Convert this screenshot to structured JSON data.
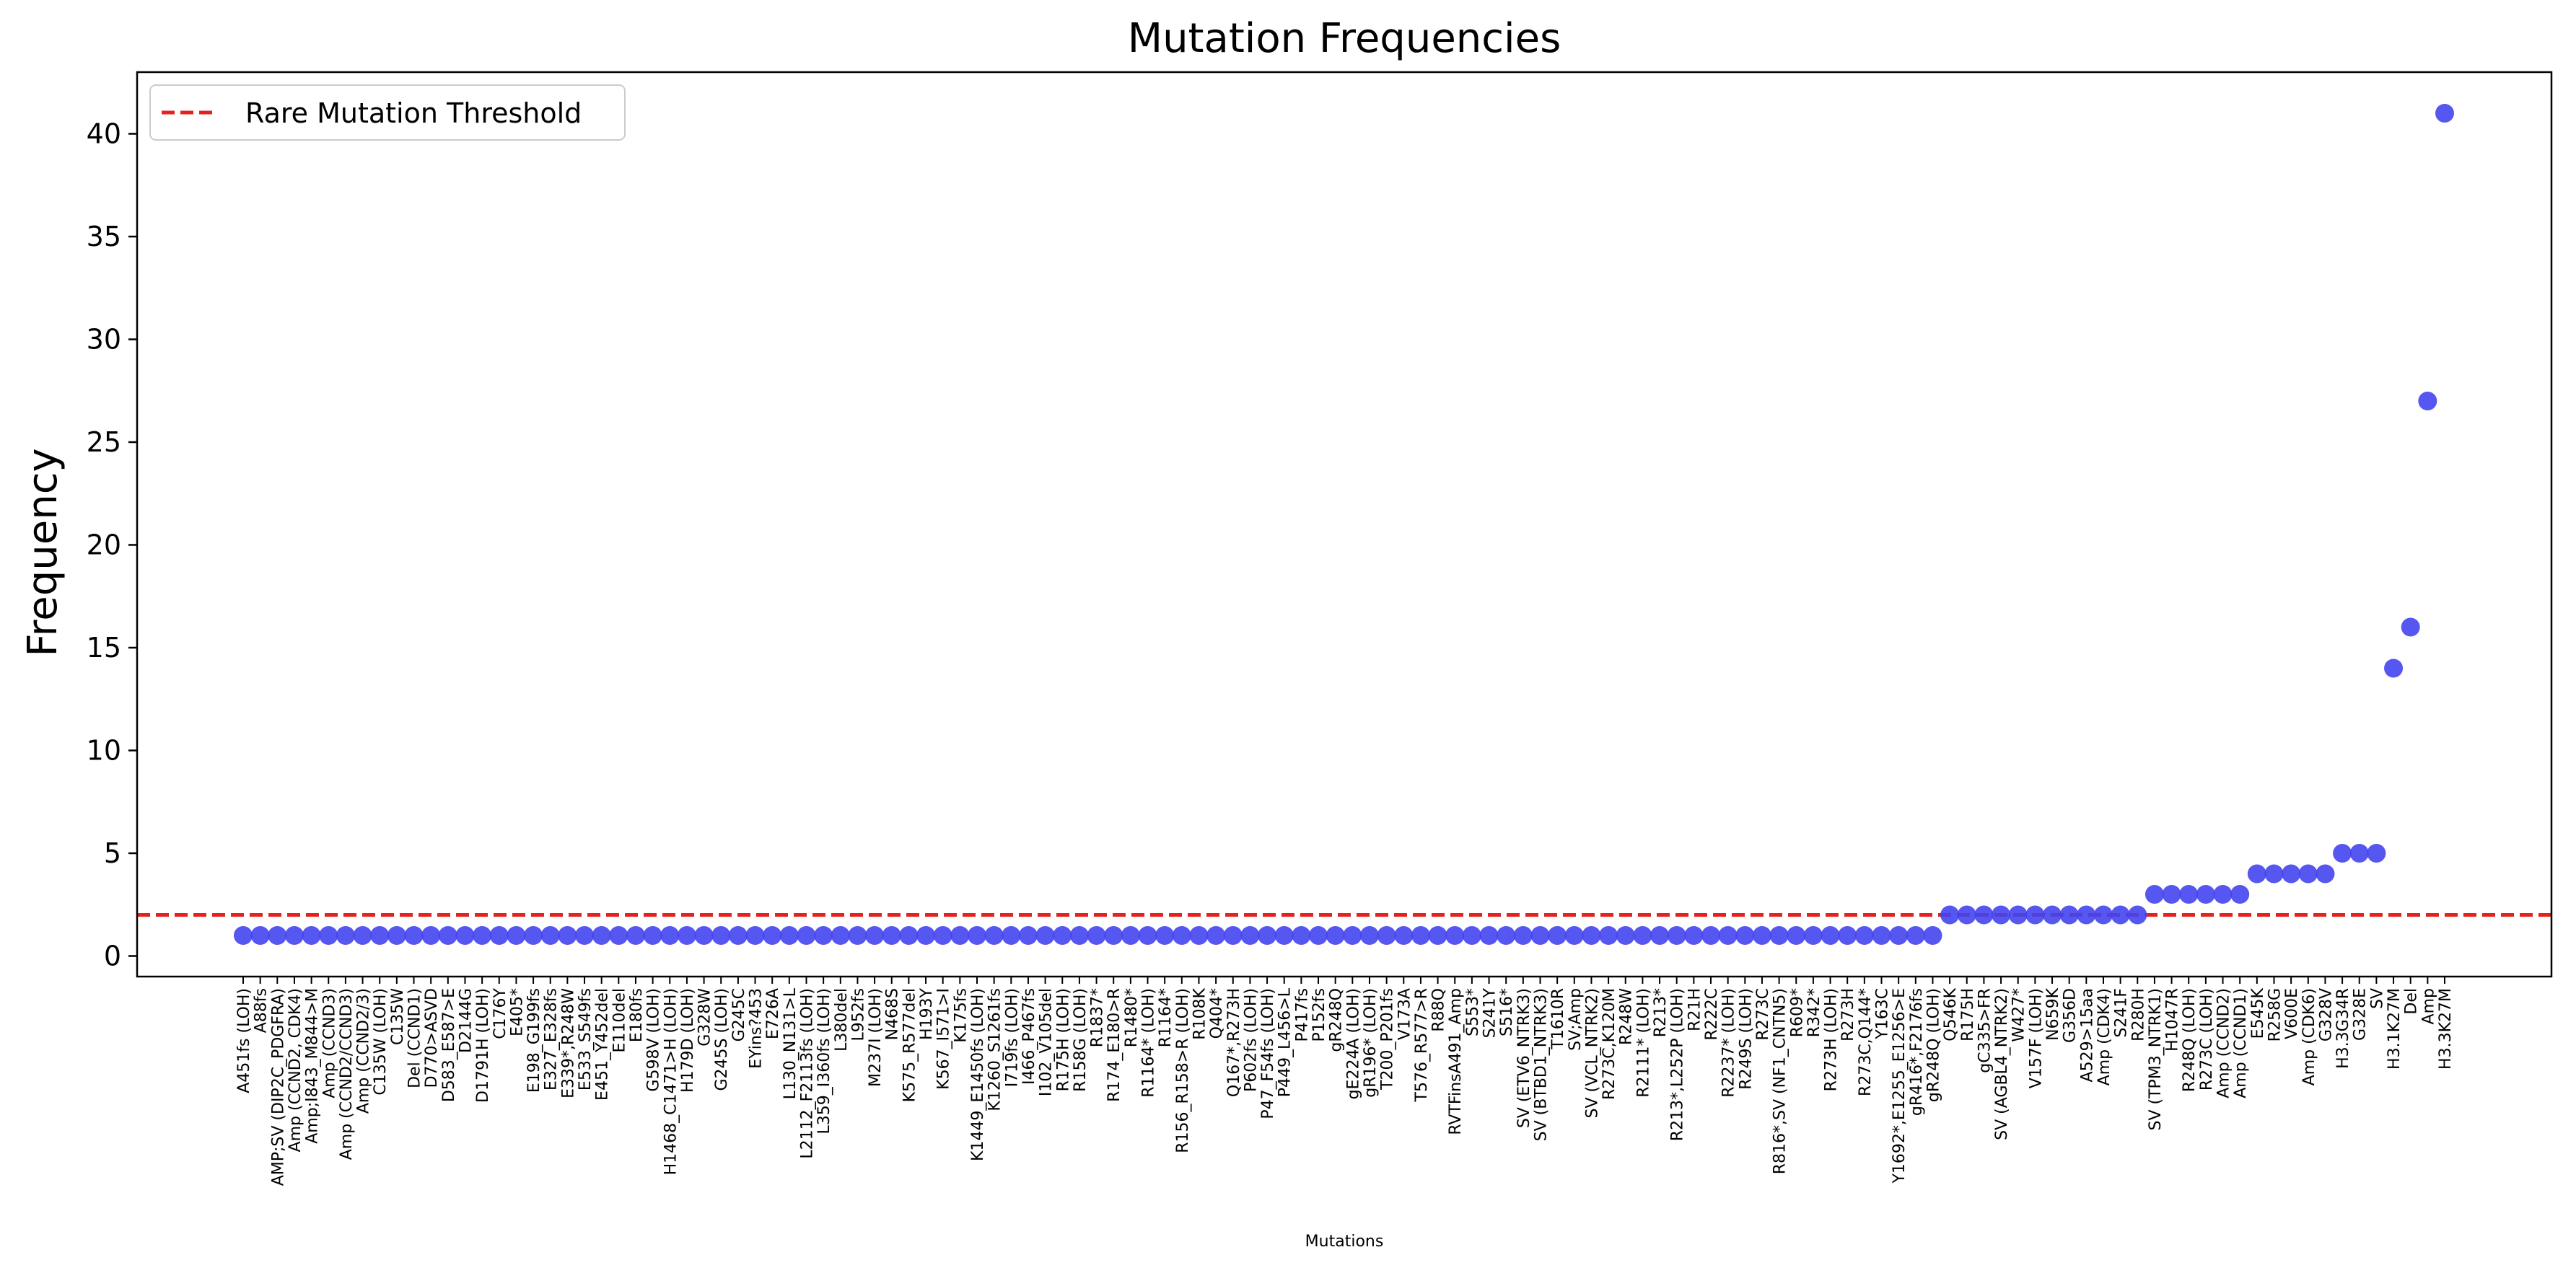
{
  "chart_data": {
    "type": "scatter",
    "title": "Mutation Frequencies",
    "xlabel": "Mutations",
    "ylabel": "Frequency",
    "ylim": [
      -1,
      43
    ],
    "yticks": [
      0,
      5,
      10,
      15,
      20,
      25,
      30,
      35,
      40
    ],
    "point_color": "#4444ee",
    "threshold": {
      "name": "Rare Mutation Threshold",
      "value": 2,
      "color": "#e8211d",
      "style": "dashed"
    },
    "legend_position": "top-left",
    "categories": [
      "A451fs (LOH)",
      "A88fs",
      "AMP;SV (DIP2C_PDGFRA)",
      "Amp (CCND2, CDK4)",
      "Amp;I843_M844>M",
      "Amp (CCND3)",
      "Amp (CCND2/CCND3)",
      "Amp (CCND2/3)",
      "C135W (LOH)",
      "C135W",
      "Del (CCND1)",
      "D770>ASVD",
      "D583_E587>E",
      "D2144G",
      "D1791H (LOH)",
      "C176Y",
      "E405*",
      "E198_G199fs",
      "E327_E328fs",
      "E339*,R248W",
      "E533_S549fs",
      "E451_Y452del",
      "E110del",
      "E180fs",
      "G598V (LOH)",
      "H1468_C1471>H (LOH)",
      "H179D (LOH)",
      "G328W",
      "G245S (LOH)",
      "G245C",
      "EYins?453",
      "E726A",
      "L130_N131>L",
      "L2112_F2113fs (LOH)",
      "L359_I360fs (LOH)",
      "L380del",
      "L952fs",
      "M237I (LOH)",
      "N468S",
      "K575_R577del",
      "H193Y",
      "K567_I571>I",
      "K175fs",
      "K1449_E1450fs (LOH)",
      "K1260_S1261fs",
      "I719fs (LOH)",
      "I466_P467fs",
      "I102_V105del",
      "R175H (LOH)",
      "R158G (LOH)",
      "R1837*",
      "R174_E180>R",
      "R1480*",
      "R1164* (LOH)",
      "R1164*",
      "R156_R158>R (LOH)",
      "R108K",
      "Q404*",
      "Q167*,R273H",
      "P602fs (LOH)",
      "P47_F54fs (LOH)",
      "P449_L456>L",
      "P417fs",
      "P152fs",
      "gR248Q",
      "gE224A (LOH)",
      "gR196* (LOH)",
      "T200_P201fs",
      "V173A",
      "T576_R577>R",
      "R88Q",
      "RVTFinsA491_Amp",
      "S553*",
      "S241Y",
      "S516*",
      "SV (ETV6_NTRK3)",
      "SV (BTBD1_NTRK3)",
      "T1610R",
      "SV;Amp",
      "SV (VCL_NTRK2)",
      "R273C,K120M",
      "R248W",
      "R2111* (LOH)",
      "R213*",
      "R213*,L252P (LOH)",
      "R21H",
      "R222C",
      "R2237* (LOH)",
      "R249S (LOH)",
      "R273C",
      "R816*,SV (NF1_CNTN5)",
      "R609*",
      "R342*",
      "R273H (LOH)",
      "R273H",
      "R273C,Q144*",
      "Y163C",
      "Y1692*,E1255_E1256>E",
      "gR416*,F2176fs",
      "gR248Q (LOH)",
      "Q546K",
      "R175H",
      "gC335>FR",
      "SV (AGBL4_NTRK2)",
      "W427*",
      "V157F (LOH)",
      "N659K",
      "G356D",
      "A529>15aa",
      "Amp (CDK4)",
      "S241F",
      "R280H",
      "SV (TPM3_NTRK1)",
      "H1047R",
      "R248Q (LOH)",
      "R273C (LOH)",
      "Amp (CCND2)",
      "Amp (CCND1)",
      "E545K",
      "R258G",
      "V600E",
      "Amp (CDK6)",
      "G328V",
      "H3.3G34R",
      "G328E",
      "SV",
      "H3.1K27M",
      "Del",
      "Amp",
      "H3.3K27M"
    ],
    "values": [
      1,
      1,
      1,
      1,
      1,
      1,
      1,
      1,
      1,
      1,
      1,
      1,
      1,
      1,
      1,
      1,
      1,
      1,
      1,
      1,
      1,
      1,
      1,
      1,
      1,
      1,
      1,
      1,
      1,
      1,
      1,
      1,
      1,
      1,
      1,
      1,
      1,
      1,
      1,
      1,
      1,
      1,
      1,
      1,
      1,
      1,
      1,
      1,
      1,
      1,
      1,
      1,
      1,
      1,
      1,
      1,
      1,
      1,
      1,
      1,
      1,
      1,
      1,
      1,
      1,
      1,
      1,
      1,
      1,
      1,
      1,
      1,
      1,
      1,
      1,
      1,
      1,
      1,
      1,
      1,
      1,
      1,
      1,
      1,
      1,
      1,
      1,
      1,
      1,
      1,
      1,
      1,
      1,
      1,
      1,
      1,
      1,
      1,
      1,
      1,
      2,
      2,
      2,
      2,
      2,
      2,
      2,
      2,
      2,
      2,
      2,
      2,
      3,
      3,
      3,
      3,
      3,
      3,
      4,
      4,
      4,
      4,
      4,
      5,
      5,
      5,
      14,
      16,
      27,
      41
    ]
  }
}
